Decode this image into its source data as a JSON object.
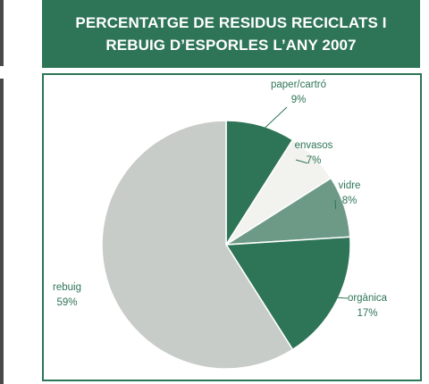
{
  "header": {
    "title": "PERCENTATGE DE RESIDUS RECICLATS I\nREBUIG D’ESPORLES L’ANY 2007"
  },
  "chart_data": {
    "type": "pie",
    "title": "PERCENTATGE DE RESIDUS RECICLATS I REBUIG D’ESPORLES L’ANY 2007",
    "slices": [
      {
        "label": "paper/cartró",
        "value": 9,
        "value_label": "9%",
        "color": "#2e7457"
      },
      {
        "label": "envasos",
        "value": 7,
        "value_label": "7%",
        "color": "#f2f2ee"
      },
      {
        "label": "vidre",
        "value": 8,
        "value_label": "8%",
        "color": "#6d9a86"
      },
      {
        "label": "orgànica",
        "value": 17,
        "value_label": "17%",
        "color": "#2e7457"
      },
      {
        "label": "rebuig",
        "value": 59,
        "value_label": "59%",
        "color": "#c8ccc9"
      }
    ]
  }
}
